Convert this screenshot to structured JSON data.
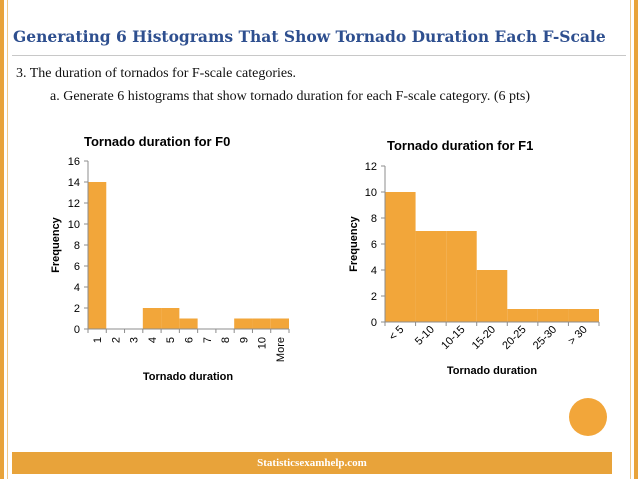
{
  "slide": {
    "title": "Generating 6 Histograms That Show Tornado Duration Each F-Scale",
    "question": "3.  The duration of tornados for F-scale categories.",
    "subquestion": "a.  Generate 6 histograms that show tornado duration for each F-scale category. (6 pts)",
    "footer": "Statisticsexamhelp.com",
    "accent_color": "#e8a33a",
    "title_color": "#2e4f8f"
  },
  "chart_data": [
    {
      "type": "bar",
      "title": "Tornado duration for F0",
      "xlabel": "Tornado duration",
      "ylabel": "Frequency",
      "categories": [
        "1",
        "2",
        "3",
        "4",
        "5",
        "6",
        "7",
        "8",
        "9",
        "10",
        "More"
      ],
      "values": [
        14,
        0,
        0,
        2,
        2,
        1,
        0,
        0,
        1,
        1,
        1
      ],
      "ylim": [
        0,
        16
      ],
      "yticks": [
        0,
        2,
        4,
        6,
        8,
        10,
        12,
        14,
        16
      ],
      "color": "#f2a63a",
      "grid": false,
      "legend": "none"
    },
    {
      "type": "bar",
      "title": "Tornado duration for F1",
      "xlabel": "Tornado duration",
      "ylabel": "Frequency",
      "categories": [
        "< 5",
        "5-10",
        "10-15",
        "15-20",
        "20-25",
        "25-30",
        "> 30"
      ],
      "values": [
        10,
        7,
        7,
        4,
        1,
        1,
        1
      ],
      "ylim": [
        0,
        12
      ],
      "yticks": [
        0,
        2,
        4,
        6,
        8,
        10,
        12
      ],
      "color": "#f2a63a",
      "grid": false,
      "legend": "none"
    }
  ]
}
